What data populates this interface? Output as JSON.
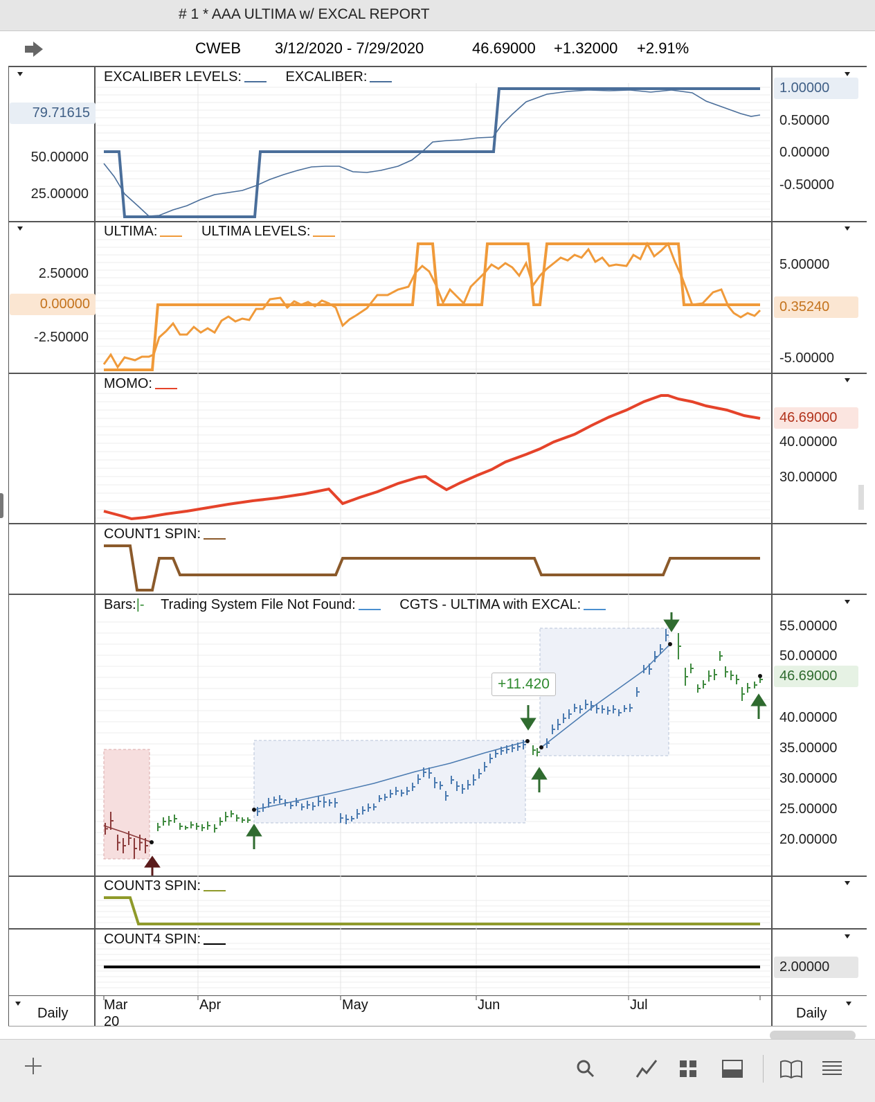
{
  "window": {
    "title": "# 1 * AAA ULTIMA w/ EXCAL REPORT"
  },
  "header": {
    "symbol": "CWEB",
    "date_range": "3/12/2020 - 7/29/2020",
    "last": "46.69000",
    "change": "+1.32000",
    "pct": "+2.91%"
  },
  "panes": {
    "excal": {
      "label1": "EXCALIBER LEVELS:",
      "label2": "EXCALIBER:",
      "left_ticks": [
        "50.00000",
        "25.00000"
      ],
      "left_tag": "79.71615",
      "right_ticks": [
        "0.50000",
        "0.00000",
        "-0.50000"
      ],
      "right_tag": "1.00000",
      "color": "#4a6e9a"
    },
    "ultima": {
      "label1": "ULTIMA:",
      "label2": "ULTIMA LEVELS:",
      "left_ticks": [
        "2.50000",
        "-2.50000"
      ],
      "left_tag": "0.00000",
      "right_ticks": [
        "5.00000",
        "-5.00000"
      ],
      "right_tag": "0.35240",
      "color": "#f09a3a"
    },
    "momo": {
      "label1": "MOMO:",
      "right_ticks": [
        "40.00000",
        "30.00000"
      ],
      "right_tag": "46.69000",
      "color": "#e5432a"
    },
    "count1": {
      "label1": "COUNT1 SPIN:",
      "color": "#8b5a2b"
    },
    "bars": {
      "label1": "Bars:",
      "label_tick": "|-",
      "label2": "Trading System File Not Found:",
      "label3": "CGTS - ULTIMA with EXCAL:",
      "right_ticks": [
        "55.00000",
        "50.00000",
        "40.00000",
        "35.00000",
        "30.00000",
        "25.00000",
        "20.00000"
      ],
      "right_tag": "46.69000",
      "profit_label": "+11.420"
    },
    "count3": {
      "label1": "COUNT3 SPIN:",
      "color": "#8f9a2a"
    },
    "count4": {
      "label1": "COUNT4 SPIN:",
      "right_tag": "2.00000",
      "color": "#000000"
    }
  },
  "time_axis": {
    "months": [
      "Mar",
      "Apr",
      "May",
      "Jun",
      "Jul"
    ],
    "year": "20"
  },
  "footer": {
    "left_period": "Daily",
    "right_period": "Daily"
  },
  "toolbar": {
    "icons": [
      "plus-icon",
      "search-icon",
      "chart-line-icon",
      "grid-icon",
      "panel-icon",
      "book-icon",
      "list-icon"
    ]
  }
}
